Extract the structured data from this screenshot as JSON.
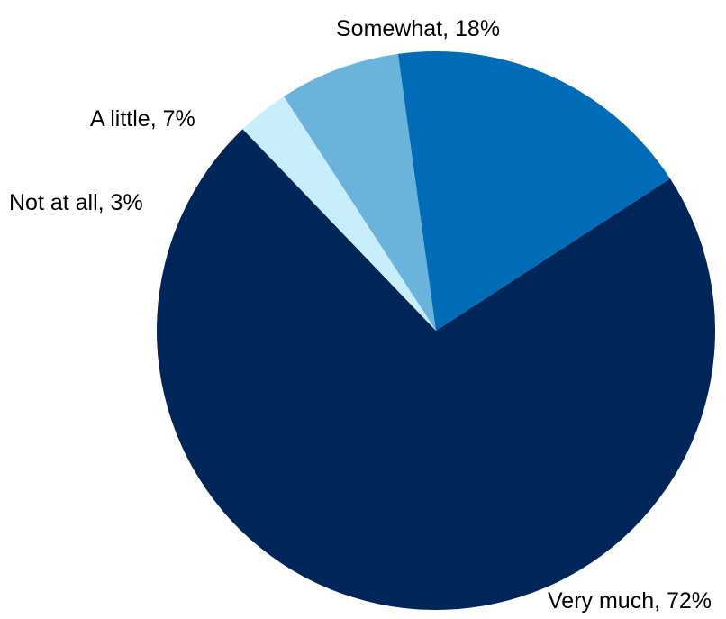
{
  "chart_data": {
    "type": "pie",
    "slices": [
      {
        "label": "Very much",
        "value": 72,
        "display": "Very much, 72%",
        "color": "#002659"
      },
      {
        "label": "Not at all",
        "value": 3,
        "display": "Not at all, 3%",
        "color": "#C8EEFC"
      },
      {
        "label": "A little",
        "value": 7,
        "display": "A little, 7%",
        "color": "#6AB4DC"
      },
      {
        "label": "Somewhat",
        "value": 18,
        "display": "Somewhat, 18%",
        "color": "#006BB6"
      }
    ]
  }
}
